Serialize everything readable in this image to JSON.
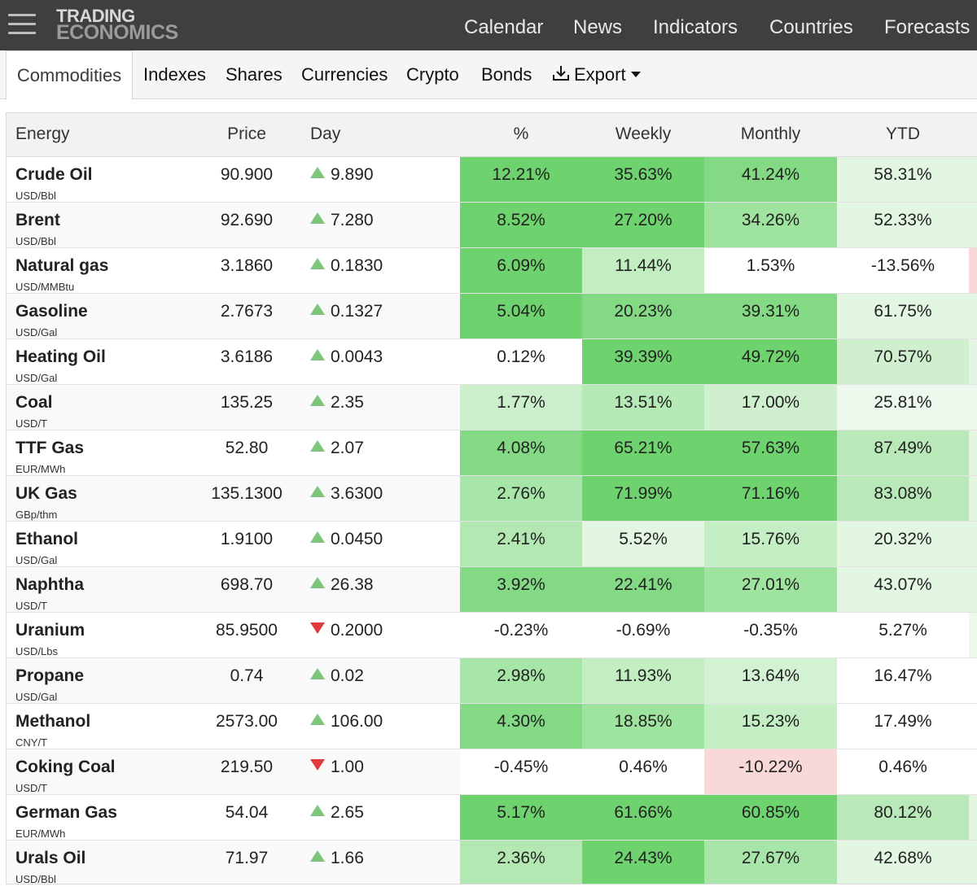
{
  "header": {
    "logo_line1": "TRADING",
    "logo_line2": "ECONOMICS",
    "nav": [
      "Calendar",
      "News",
      "Indicators",
      "Countries",
      "Forecasts"
    ]
  },
  "tabs": {
    "items": [
      "Commodities",
      "Indexes",
      "Shares",
      "Currencies",
      "Crypto",
      "Bonds"
    ],
    "active": "Commodities",
    "export_label": "Export"
  },
  "table": {
    "columns": [
      "Energy",
      "Price",
      "Day",
      "%",
      "Weekly",
      "Monthly",
      "YTD"
    ],
    "rows": [
      {
        "name": "Crude Oil",
        "unit": "USD/Bbl",
        "price": "90.900",
        "day": "9.890",
        "dir": "up",
        "pct": "12.21%",
        "weekly": "35.63%",
        "monthly": "41.24%",
        "ytd": "58.31%"
      },
      {
        "name": "Brent",
        "unit": "USD/Bbl",
        "price": "92.690",
        "day": "7.280",
        "dir": "up",
        "pct": "8.52%",
        "weekly": "27.20%",
        "monthly": "34.26%",
        "ytd": "52.33%"
      },
      {
        "name": "Natural gas",
        "unit": "USD/MMBtu",
        "price": "3.1860",
        "day": "0.1830",
        "dir": "up",
        "pct": "6.09%",
        "weekly": "11.44%",
        "monthly": "1.53%",
        "ytd": "-13.56%"
      },
      {
        "name": "Gasoline",
        "unit": "USD/Gal",
        "price": "2.7673",
        "day": "0.1327",
        "dir": "up",
        "pct": "5.04%",
        "weekly": "20.23%",
        "monthly": "39.31%",
        "ytd": "61.75%"
      },
      {
        "name": "Heating Oil",
        "unit": "USD/Gal",
        "price": "3.6186",
        "day": "0.0043",
        "dir": "up",
        "pct": "0.12%",
        "weekly": "39.39%",
        "monthly": "49.72%",
        "ytd": "70.57%"
      },
      {
        "name": "Coal",
        "unit": "USD/T",
        "price": "135.25",
        "day": "2.35",
        "dir": "up",
        "pct": "1.77%",
        "weekly": "13.51%",
        "monthly": "17.00%",
        "ytd": "25.81%"
      },
      {
        "name": "TTF Gas",
        "unit": "EUR/MWh",
        "price": "52.80",
        "day": "2.07",
        "dir": "up",
        "pct": "4.08%",
        "weekly": "65.21%",
        "monthly": "57.63%",
        "ytd": "87.49%"
      },
      {
        "name": "UK Gas",
        "unit": "GBp/thm",
        "price": "135.1300",
        "day": "3.6300",
        "dir": "up",
        "pct": "2.76%",
        "weekly": "71.99%",
        "monthly": "71.16%",
        "ytd": "83.08%"
      },
      {
        "name": "Ethanol",
        "unit": "USD/Gal",
        "price": "1.9100",
        "day": "0.0450",
        "dir": "up",
        "pct": "2.41%",
        "weekly": "5.52%",
        "monthly": "15.76%",
        "ytd": "20.32%"
      },
      {
        "name": "Naphtha",
        "unit": "USD/T",
        "price": "698.70",
        "day": "26.38",
        "dir": "up",
        "pct": "3.92%",
        "weekly": "22.41%",
        "monthly": "27.01%",
        "ytd": "43.07%"
      },
      {
        "name": "Uranium",
        "unit": "USD/Lbs",
        "price": "85.9500",
        "day": "0.2000",
        "dir": "down",
        "pct": "-0.23%",
        "weekly": "-0.69%",
        "monthly": "-0.35%",
        "ytd": "5.27%"
      },
      {
        "name": "Propane",
        "unit": "USD/Gal",
        "price": "0.74",
        "day": "0.02",
        "dir": "up",
        "pct": "2.98%",
        "weekly": "11.93%",
        "monthly": "13.64%",
        "ytd": "16.47%"
      },
      {
        "name": "Methanol",
        "unit": "CNY/T",
        "price": "2573.00",
        "day": "106.00",
        "dir": "up",
        "pct": "4.30%",
        "weekly": "18.85%",
        "monthly": "15.23%",
        "ytd": "17.49%"
      },
      {
        "name": "Coking Coal",
        "unit": "USD/T",
        "price": "219.50",
        "day": "1.00",
        "dir": "down",
        "pct": "-0.45%",
        "weekly": "0.46%",
        "monthly": "-10.22%",
        "ytd": "0.46%"
      },
      {
        "name": "German Gas",
        "unit": "EUR/MWh",
        "price": "54.04",
        "day": "2.65",
        "dir": "up",
        "pct": "5.17%",
        "weekly": "61.66%",
        "monthly": "60.85%",
        "ytd": "80.12%"
      },
      {
        "name": "Urals Oil",
        "unit": "USD/Bbl",
        "price": "71.97",
        "day": "1.66",
        "dir": "up",
        "pct": "2.36%",
        "weekly": "24.43%",
        "monthly": "27.67%",
        "ytd": "42.68%"
      }
    ],
    "cell_colors": [
      [
        "#6ed36e",
        "#6ed36e",
        "#84da84",
        "#e2f6e2",
        "#e2f6e2"
      ],
      [
        "#6ed36e",
        "#6ed36e",
        "#9ee39e",
        "#e2f6e2",
        "#e2f6e2"
      ],
      [
        "#6ed36e",
        "#c2eec2",
        "#ffffff",
        "#ffffff",
        "#f8d8d8"
      ],
      [
        "#6ed36e",
        "#84da84",
        "#84da84",
        "#e2f6e2",
        "#e2f6e2"
      ],
      [
        "#ffffff",
        "#6ed36e",
        "#6ed36e",
        "#cfefcf",
        "#e2f6e2"
      ],
      [
        "#ccefcc",
        "#b5e9b5",
        "#cfefcf",
        "#ecf9ec",
        "#ecf9ec"
      ],
      [
        "#84da84",
        "#6ed36e",
        "#6ed36e",
        "#b9e9b9",
        "#e2f6e2"
      ],
      [
        "#a8e5a8",
        "#6ed36e",
        "#6ed36e",
        "#b9e9b9",
        "#e2f6e2"
      ],
      [
        "#b3e8b3",
        "#e2f6e2",
        "#c4eec4",
        "#e2f6e2",
        "#e2f6e2"
      ],
      [
        "#84da84",
        "#84da84",
        "#9ee39e",
        "#e2f6e2",
        "#e2f6e2"
      ],
      [
        "#ffffff",
        "#ffffff",
        "#ffffff",
        "#ffffff",
        "#ecf9ec"
      ],
      [
        "#a8e5a8",
        "#c2eec2",
        "#d3f1d3",
        "#ffffff",
        "#ffffff"
      ],
      [
        "#84da84",
        "#9ee39e",
        "#c4eec4",
        "#ffffff",
        "#ffffff"
      ],
      [
        "#ffffff",
        "#ffffff",
        "#f8d8d8",
        "#ffffff",
        "#ffffff"
      ],
      [
        "#6ed36e",
        "#6ed36e",
        "#6ed36e",
        "#b9e9b9",
        "#e2f6e2"
      ],
      [
        "#b3e8b3",
        "#6ed36e",
        "#a8e5a8",
        "#e2f6e2",
        "#e2f6e2"
      ]
    ]
  }
}
